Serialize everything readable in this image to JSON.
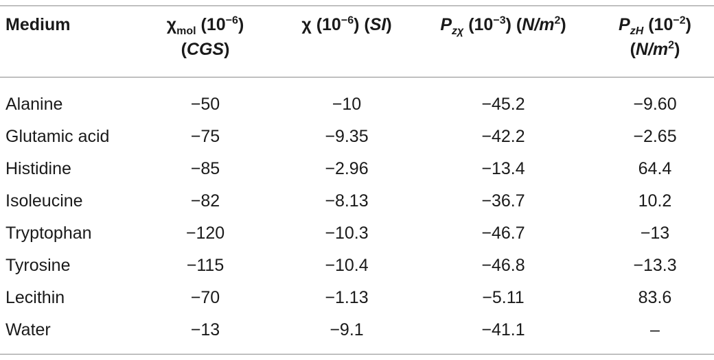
{
  "table": {
    "headers": {
      "medium": "Medium",
      "chi_mol": {
        "symbol": "χ",
        "sub": "mol",
        "unit_base": "(10",
        "unit_exp": "−6",
        "unit_close": ")",
        "system": "CGS"
      },
      "chi": {
        "symbol": "χ",
        "unit_base": "(10",
        "unit_exp": "−6",
        "unit_close": ")",
        "system": "SI"
      },
      "p_z_chi": {
        "symbol": "P",
        "sub": "zχ",
        "unit_base": "(10",
        "unit_exp": "−3",
        "unit_close": ")",
        "unit_text": "N/m",
        "unit_exp2": "2"
      },
      "p_z_h": {
        "symbol": "P",
        "sub": "zH",
        "unit_base": "(10",
        "unit_exp": "−2",
        "unit_close": ")",
        "unit_text": "N/m",
        "unit_exp2": "2"
      }
    },
    "rows": [
      {
        "medium": "Alanine",
        "chi_mol": "−50",
        "chi": "−10",
        "p_z_chi": "−45.2",
        "p_z_h": "−9.60"
      },
      {
        "medium": "Glutamic acid",
        "chi_mol": "−75",
        "chi": "−9.35",
        "p_z_chi": "−42.2",
        "p_z_h": "−2.65"
      },
      {
        "medium": "Histidine",
        "chi_mol": "−85",
        "chi": "−2.96",
        "p_z_chi": "−13.4",
        "p_z_h": "64.4"
      },
      {
        "medium": "Isoleucine",
        "chi_mol": "−82",
        "chi": "−8.13",
        "p_z_chi": "−36.7",
        "p_z_h": "10.2"
      },
      {
        "medium": "Tryptophan",
        "chi_mol": "−120",
        "chi": "−10.3",
        "p_z_chi": "−46.7",
        "p_z_h": "−13"
      },
      {
        "medium": "Tyrosine",
        "chi_mol": "−115",
        "chi": "−10.4",
        "p_z_chi": "−46.8",
        "p_z_h": "−13.3"
      },
      {
        "medium": "Lecithin",
        "chi_mol": "−70",
        "chi": "−1.13",
        "p_z_chi": "−5.11",
        "p_z_h": "83.6"
      },
      {
        "medium": "Water",
        "chi_mol": "−13",
        "chi": "−9.1",
        "p_z_chi": "−41.1",
        "p_z_h": "–"
      }
    ]
  }
}
